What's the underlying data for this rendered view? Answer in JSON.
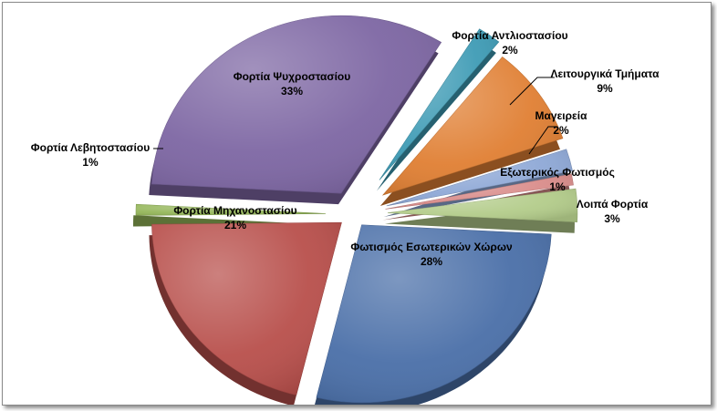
{
  "chart_data": {
    "type": "pie",
    "title": "",
    "legend": "none",
    "slices": [
      {
        "label": "Φωτισμός Εσωτερικών Χώρων",
        "percent_label": "28%",
        "value": 28,
        "color": "#4a6fa8"
      },
      {
        "label": "Φορτία Μηχανοστασίου",
        "percent_label": "21%",
        "value": 21,
        "color": "#b84f4b"
      },
      {
        "label": "Φορτία Λεβητοστασίου",
        "percent_label": "1%",
        "value": 1,
        "color": "#94b659"
      },
      {
        "label": "Φορτία Ψυχροστασίου",
        "percent_label": "33%",
        "value": 33,
        "color": "#7d66a3"
      },
      {
        "label": "Φορτία Αντλιοστασίου",
        "percent_label": "2%",
        "value": 2,
        "color": "#3e9bb5"
      },
      {
        "label": "Λειτουργικά Τμήματα",
        "percent_label": "9%",
        "value": 9,
        "color": "#e07f33"
      },
      {
        "label": "Μαγειρεία",
        "percent_label": "2%",
        "value": 2,
        "color": "#8ea8d6"
      },
      {
        "label": "Εξωτερικός Φωτισμός",
        "percent_label": "1%",
        "value": 1,
        "color": "#d98c8a"
      },
      {
        "label": "Λοιπά Φορτία",
        "percent_label": "3%",
        "value": 3,
        "color": "#b3cc8a"
      }
    ]
  }
}
